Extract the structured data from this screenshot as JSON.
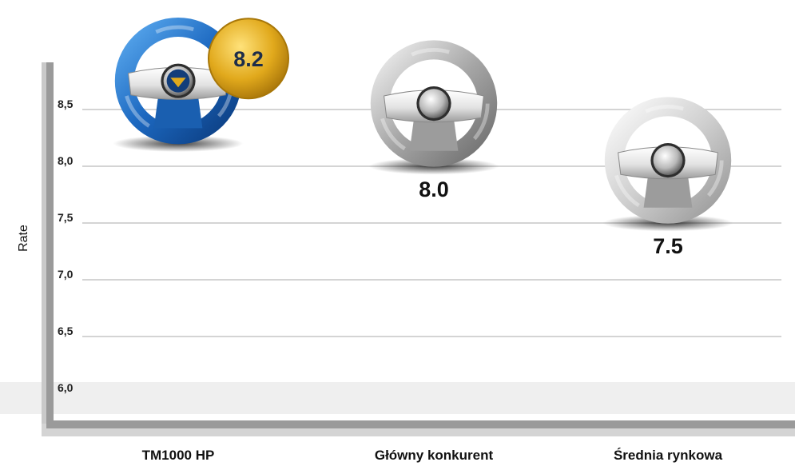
{
  "chart_data": {
    "type": "scatter",
    "ylabel": "Rate",
    "ylim": [
      5.75,
      9.0
    ],
    "yticks": [
      "6,0",
      "6,5",
      "7,0",
      "7,5",
      "8,0",
      "8,5"
    ],
    "ytick_values": [
      6.0,
      6.5,
      7.0,
      7.5,
      8.0,
      8.5
    ],
    "categories": [
      "TM1000 HP",
      "Główny konkurent",
      "Średnia rynkowa"
    ],
    "values": [
      8.2,
      8.0,
      7.5
    ],
    "value_labels": [
      "8.2",
      "8.0",
      "7.5"
    ],
    "grid": true,
    "colors": {
      "highlight_wheel": "#1e6fc4",
      "other_wheel": "#a9a9a9",
      "badge": "#e0a91c",
      "grid": "#d4d4d4",
      "axis": "#9a9a9a"
    }
  }
}
